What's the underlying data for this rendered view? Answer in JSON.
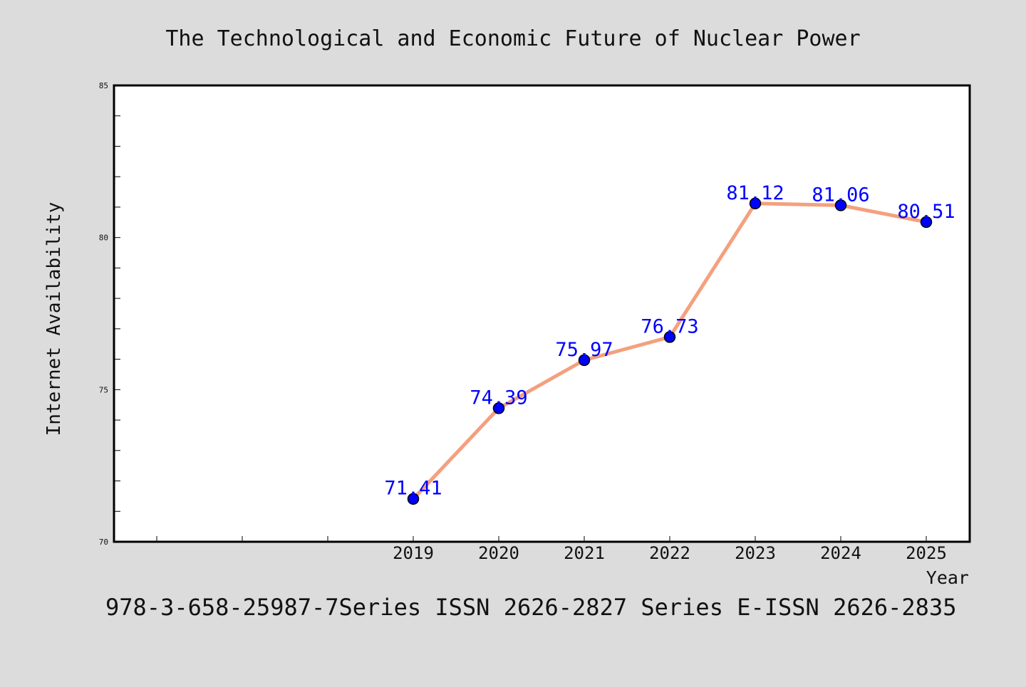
{
  "chart_data": {
    "type": "line",
    "title": "The Technological and Economic Future of Nuclear Power",
    "xlabel": "Year",
    "ylabel": "Internet Availability",
    "footer": "978-3-658-25987-7Series ISSN 2626-2827 Series E-ISSN 2626-2835",
    "categories": [
      "2019",
      "2020",
      "2021",
      "2022",
      "2023",
      "2024",
      "2025"
    ],
    "values": [
      71.41,
      74.39,
      75.97,
      76.73,
      81.12,
      81.06,
      80.51
    ],
    "value_labels": [
      "71.41",
      "74.39",
      "75.97",
      "76.73",
      "81.12",
      "81.06",
      "80.51"
    ],
    "ylim": [
      70,
      85
    ],
    "yticks": [
      "70",
      "75",
      "80",
      "85"
    ],
    "grid": false,
    "colors": {
      "background": "#dcdcdc",
      "plot_bg": "#ffffff",
      "line": "#f4a07e",
      "marker": "#0000ff",
      "data_label": "#0000ff",
      "text": "#111111"
    }
  }
}
